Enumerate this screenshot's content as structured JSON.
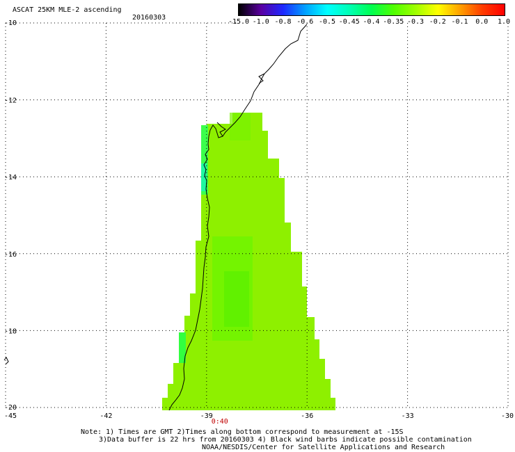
{
  "title": "ASCAT 25KM MLE-2 ascending",
  "date": "20160303",
  "colorbar": {
    "labels": [
      "-15.0",
      "-1.0",
      "-0.8",
      "-0.6",
      "-0.5",
      "-0.45",
      "-0.4",
      "-0.35",
      "-0.3",
      "-0.2",
      "-0.1",
      "0.0",
      "1.0"
    ],
    "colors": [
      "#000000",
      "#5a00a0",
      "#1e28ff",
      "#00a0ff",
      "#00ffff",
      "#00ffb4",
      "#00ff50",
      "#50ff00",
      "#a0ff00",
      "#ffff00",
      "#ffa000",
      "#ff3c00",
      "#ff0000"
    ]
  },
  "map": {
    "lon_range": [
      -45,
      -30
    ],
    "lat_range": [
      -20,
      -10
    ],
    "lon_ticks": [
      -42,
      -39,
      -36,
      -33
    ],
    "lon_edge_labels": [
      "-45",
      "-30"
    ],
    "lat_ticks": [
      -12,
      -14,
      -16,
      -18
    ],
    "lat_edge_labels": [
      "-10",
      "-20"
    ],
    "swath_color": "#8ef000",
    "time_label": "0:40",
    "time_label_lon": -39,
    "time_color": "#c00000"
  },
  "notes": [
    "Note: 1) Times are GMT 2)Times along bottom correspond to measurement at -15S",
    "3)Data buffer is 22 hrs from 20160303 4) Black wind barbs indicate possible contamination",
    "NOAA/NESDIS/Center for Satellite Applications and Research"
  ]
}
